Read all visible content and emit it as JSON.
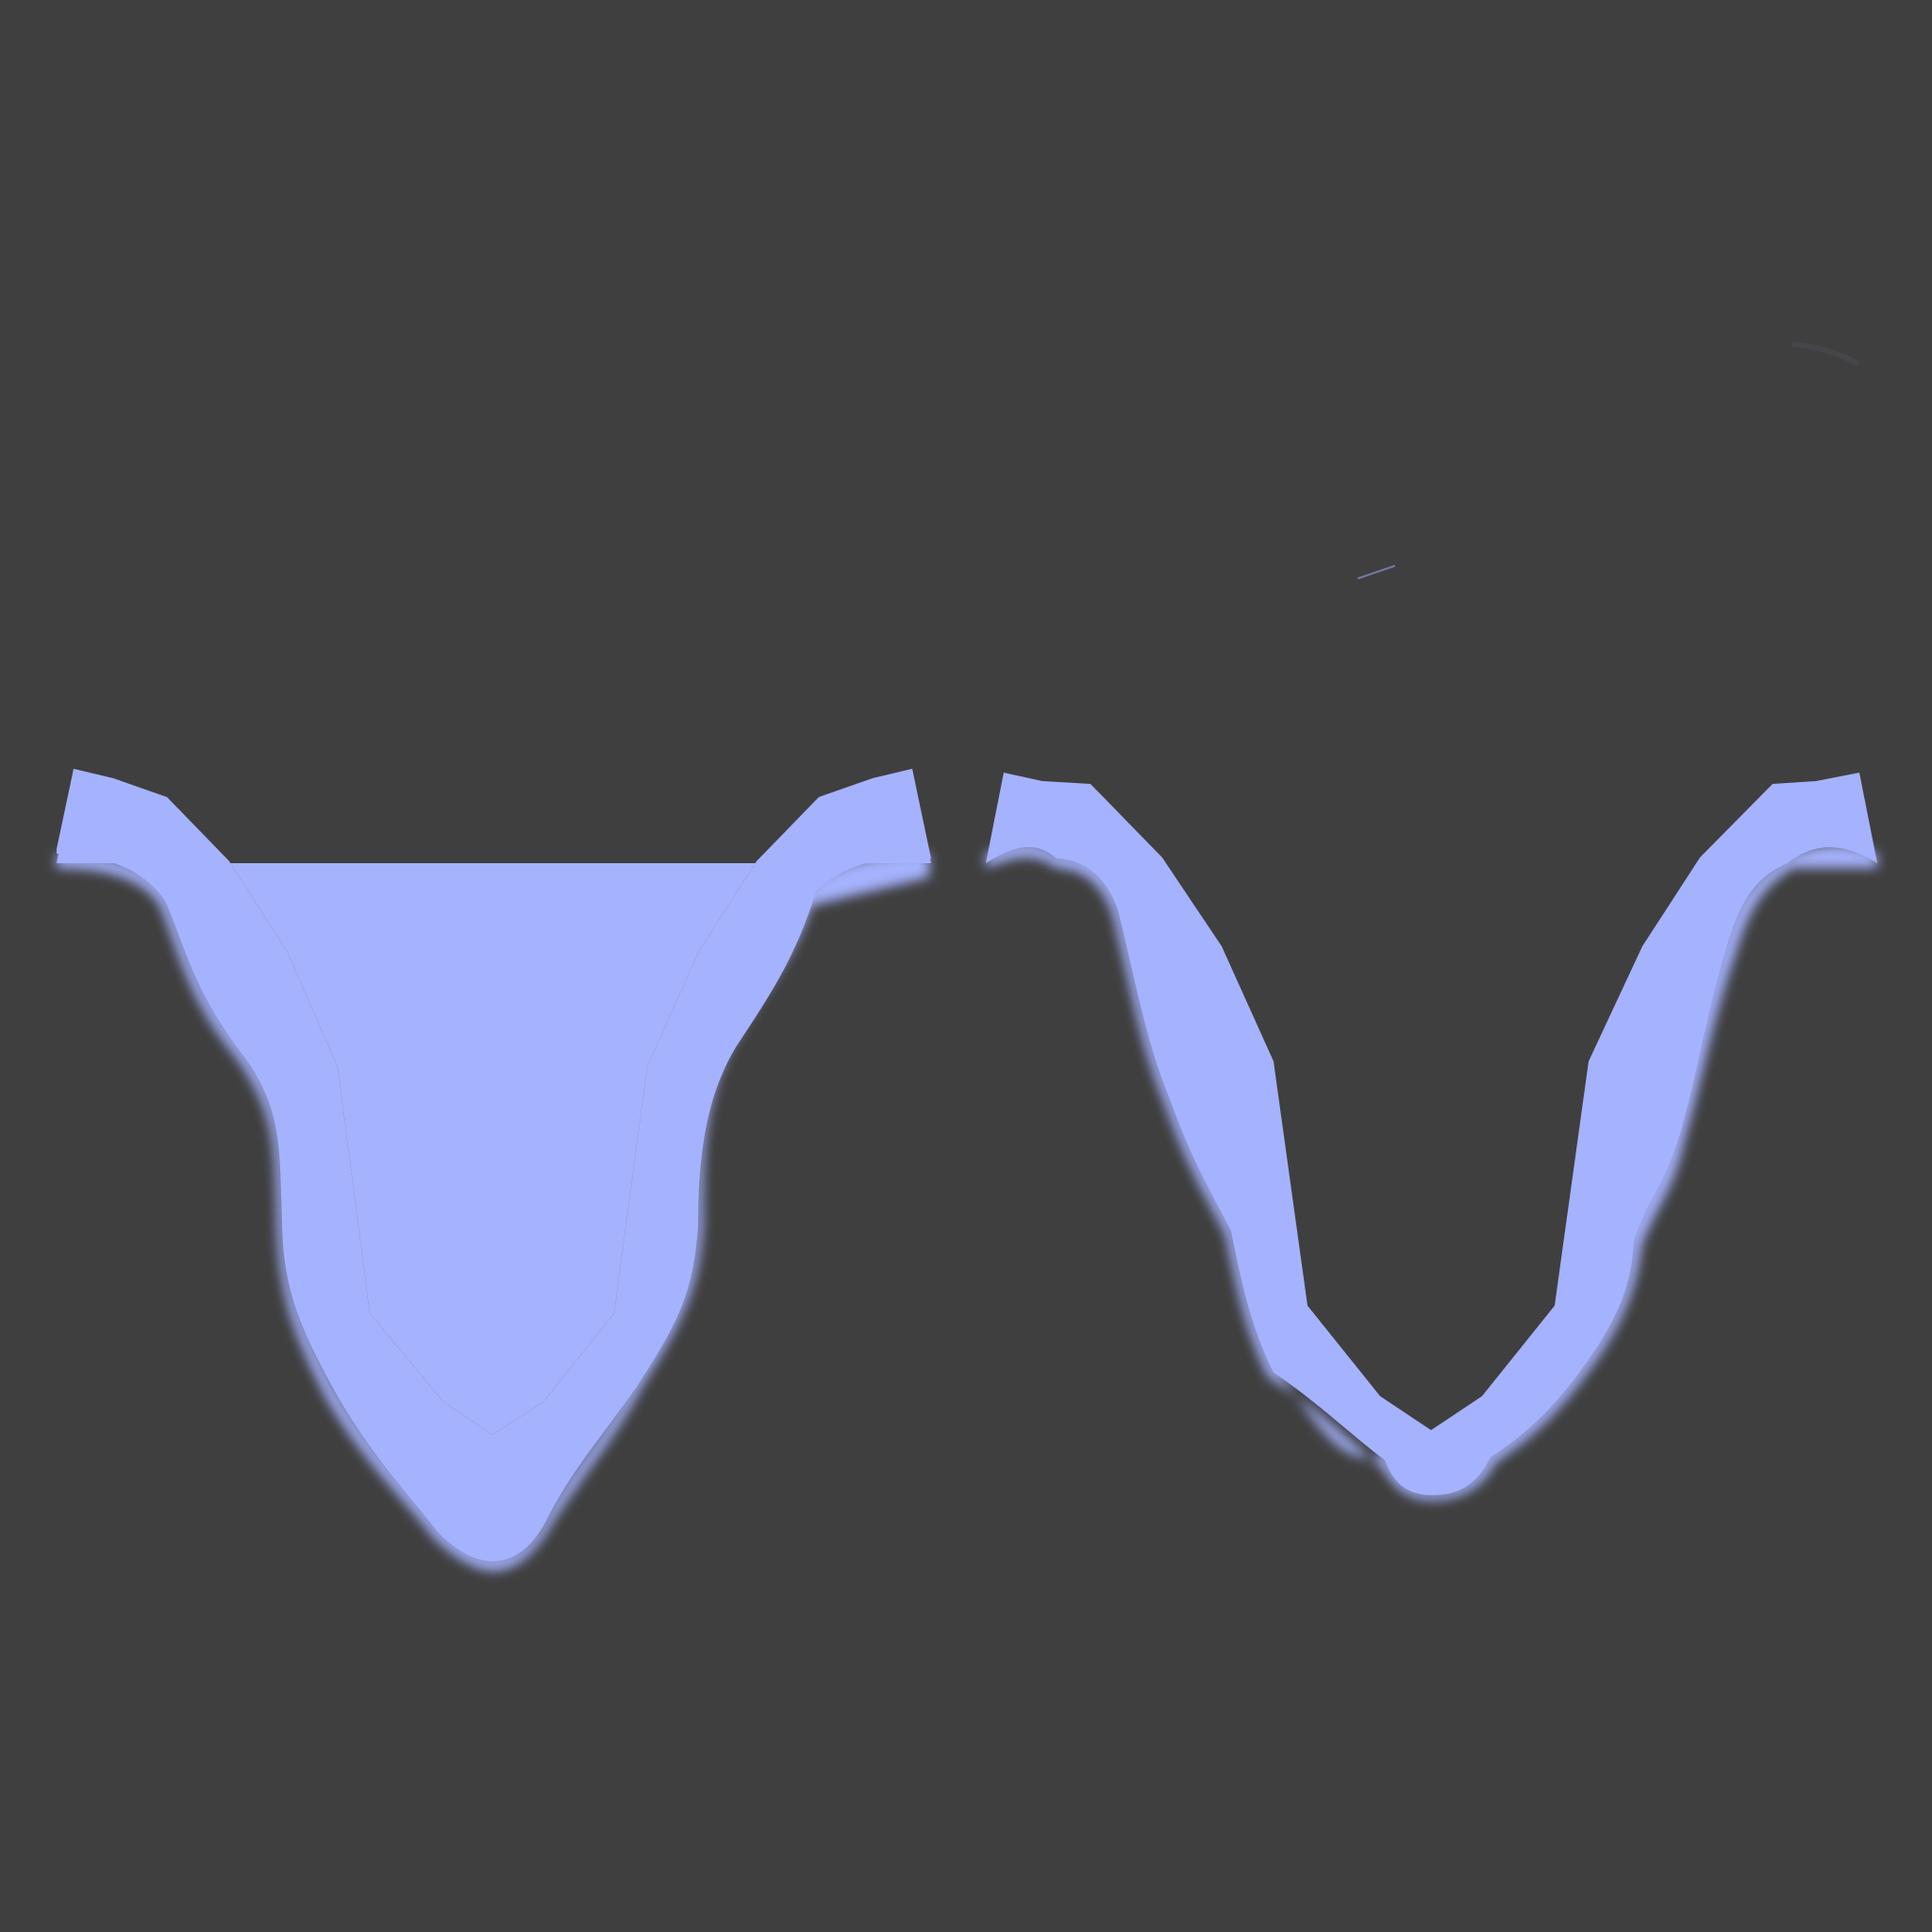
{
  "scene": {
    "background_color": "#3f3f3f",
    "stroke_color": "#a5b2fd",
    "shapes": [
      {
        "name": "left-wave-shape",
        "style": "flat-top, blurred-bottom edge"
      },
      {
        "name": "right-wave-shape",
        "style": "flat-top, blurred-bottom edge"
      }
    ]
  }
}
